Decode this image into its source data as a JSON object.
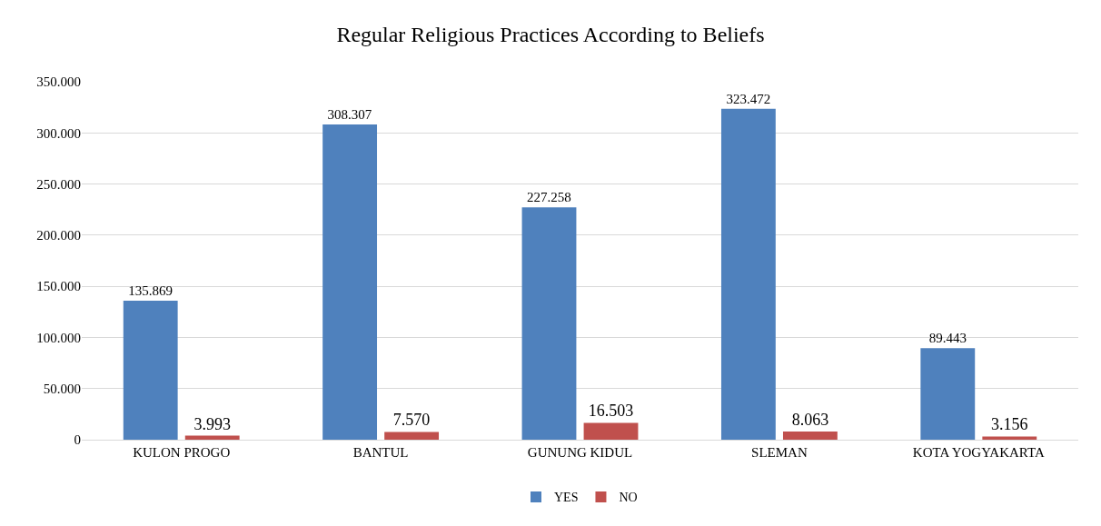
{
  "chart_data": {
    "type": "bar",
    "title": "Regular Religious Practices According to Beliefs",
    "categories": [
      "KULON PROGO",
      "BANTUL",
      "GUNUNG KIDUL",
      "SLEMAN",
      "KOTA YOGYAKARTA"
    ],
    "series": [
      {
        "name": "YES",
        "color": "#4f81bd",
        "values": [
          135869,
          308307,
          227258,
          323472,
          89443
        ],
        "value_labels": [
          "135.869",
          "308.307",
          "227.258",
          "323.472",
          "89.443"
        ]
      },
      {
        "name": "NO",
        "color": "#c0504d",
        "values": [
          3993,
          7570,
          16503,
          8063,
          3156
        ],
        "value_labels": [
          "3.993",
          "7.570",
          "16.503",
          "8.063",
          "3.156"
        ]
      }
    ],
    "ylim": [
      0,
      350000
    ],
    "yticks": [
      0,
      {
        "value": 50000,
        "label": "50.000"
      },
      {
        "value": 100000,
        "label": "100.000"
      },
      {
        "value": 150000,
        "label": "150.000"
      },
      {
        "value": 200000,
        "label": "200.000"
      },
      {
        "value": 250000,
        "label": "250.000"
      },
      {
        "value": 300000,
        "label": "300.000"
      },
      {
        "value": 350000,
        "label": "350.000"
      }
    ],
    "grid": "y",
    "legend": "bottom"
  }
}
